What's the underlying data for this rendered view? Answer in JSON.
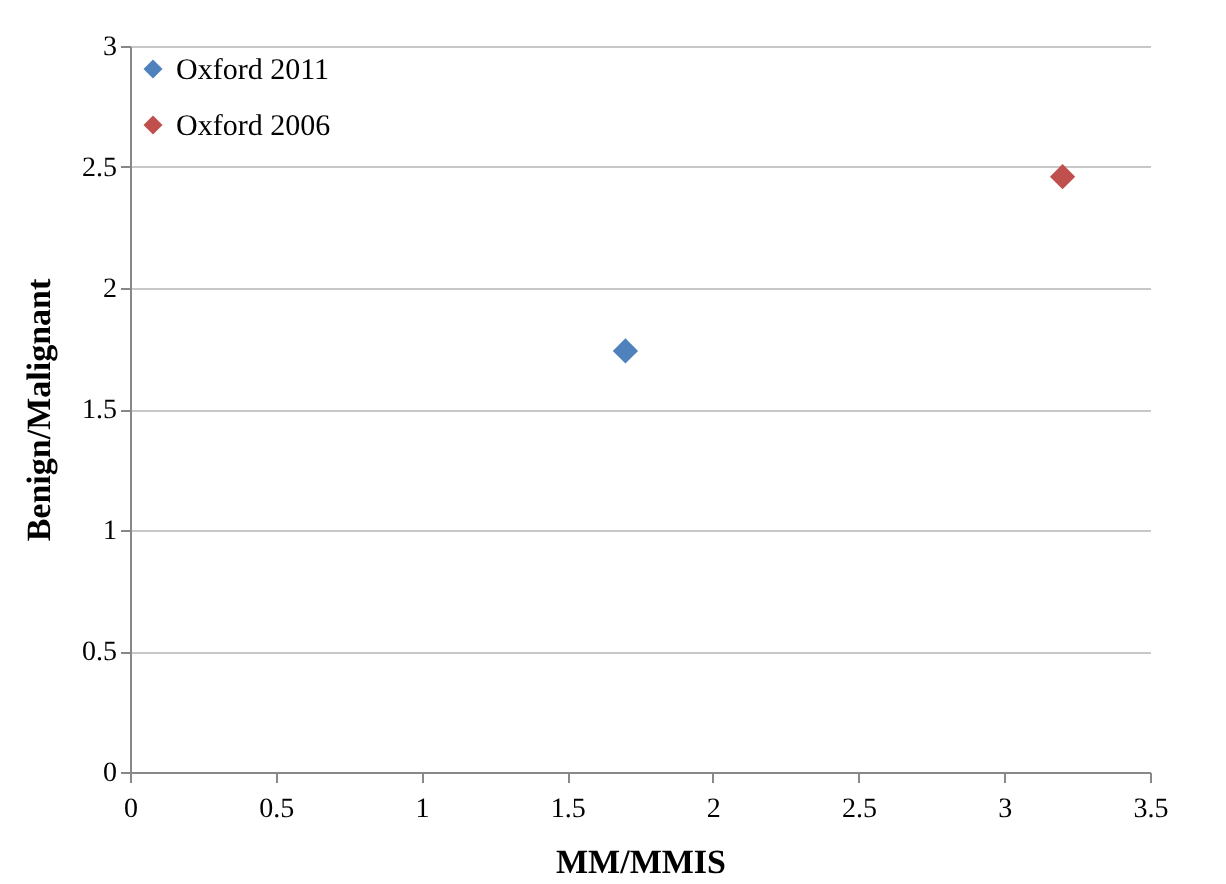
{
  "chart_data": {
    "type": "scatter",
    "xlabel": "MM/MMIS",
    "ylabel": "Benign/Malignant",
    "series": [
      {
        "name": "Oxford 2011",
        "color": "#4f81bd",
        "x": [
          1.7
        ],
        "values": [
          1.74
        ]
      },
      {
        "name": "Oxford 2006",
        "color": "#c0504d",
        "x": [
          3.2
        ],
        "values": [
          2.46
        ]
      }
    ],
    "xlim": [
      0,
      3.5
    ],
    "xticks": [
      0,
      0.5,
      1,
      1.5,
      2,
      2.5,
      3,
      3.5
    ],
    "ylim": [
      0,
      3
    ],
    "yticks": [
      0,
      0.5,
      1,
      1.5,
      2,
      2.5,
      3
    ],
    "grid": "y",
    "legend": "top left",
    "marker": "diamond"
  }
}
